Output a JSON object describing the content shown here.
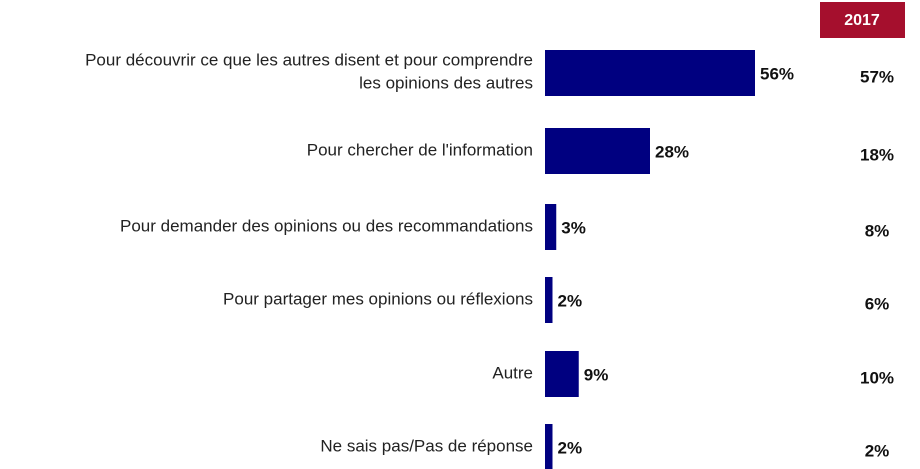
{
  "chart_data": {
    "type": "bar",
    "orientation": "horizontal",
    "categories": [
      "Pour découvrir ce que les autres disent et pour comprendre les opinions des autres",
      "Pour chercher de l'information",
      "Pour demander des opinions ou des recommandations",
      "Pour partager mes opinions ou réflexions",
      "Autre",
      "Ne sais pas/Pas de réponse"
    ],
    "values": [
      56,
      28,
      3,
      2,
      9,
      2
    ],
    "value_labels": [
      "56%",
      "28%",
      "3%",
      "2%",
      "9%",
      "2%"
    ],
    "color": "#000080",
    "comparison": {
      "name": "2017",
      "color": "#a50f2d",
      "values": [
        57,
        18,
        8,
        6,
        10,
        2
      ],
      "value_labels": [
        "57%",
        "18%",
        "8%",
        "6%",
        "10%",
        "2%"
      ]
    }
  }
}
